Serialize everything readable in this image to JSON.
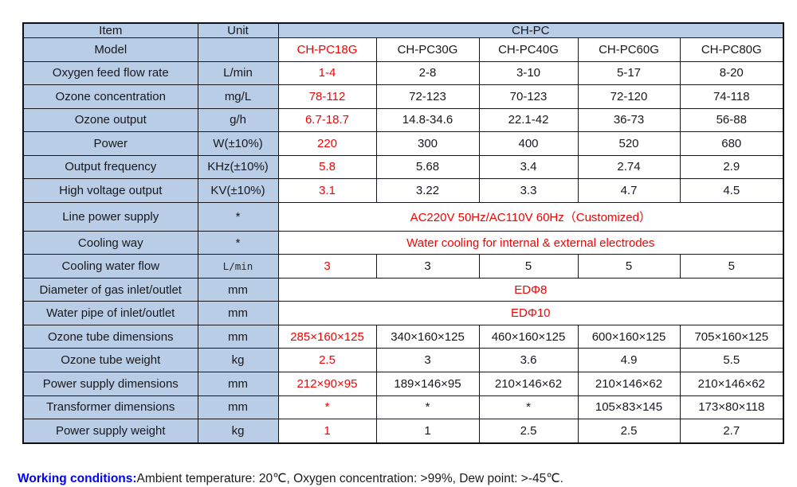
{
  "colors": {
    "header_cell_bg": "#B9CDE7",
    "highlight_red": "#F10404",
    "note_label_blue": "#0000FE",
    "border_black": "#14141A",
    "value_text": "#17181D"
  },
  "table": {
    "header": {
      "item": "Item",
      "unit": "Unit",
      "group": "CH-PC"
    },
    "rows": [
      {
        "item": "Model",
        "unit": "",
        "cells": [
          {
            "t": "CH-PC18G",
            "red": true
          },
          {
            "t": "CH-PC30G"
          },
          {
            "t": "CH-PC40G"
          },
          {
            "t": "CH-PC60G"
          },
          {
            "t": "CH-PC80G"
          }
        ]
      },
      {
        "item": "Oxygen feed flow rate",
        "unit": "L/min",
        "cells": [
          {
            "t": "1-4",
            "red": true
          },
          {
            "t": "2-8"
          },
          {
            "t": "3-10"
          },
          {
            "t": "5-17"
          },
          {
            "t": "8-20"
          }
        ]
      },
      {
        "item": "Ozone concentration",
        "unit": "mg/L",
        "cells": [
          {
            "t": "78-112",
            "red": true
          },
          {
            "t": "72-123"
          },
          {
            "t": "70-123"
          },
          {
            "t": "72-120"
          },
          {
            "t": "74-118"
          }
        ]
      },
      {
        "item": "Ozone output",
        "unit": "g/h",
        "cells": [
          {
            "t": "6.7-18.7",
            "red": true
          },
          {
            "t": "14.8-34.6"
          },
          {
            "t": "22.1-42"
          },
          {
            "t": "36-73"
          },
          {
            "t": "56-88"
          }
        ]
      },
      {
        "item": "Power",
        "unit": "W(±10%)",
        "cells": [
          {
            "t": "220",
            "red": true
          },
          {
            "t": "300"
          },
          {
            "t": "400"
          },
          {
            "t": "520"
          },
          {
            "t": "680"
          }
        ]
      },
      {
        "item": "Output frequency",
        "unit": "KHz(±10%)",
        "cells": [
          {
            "t": "5.8",
            "red": true
          },
          {
            "t": "5.68"
          },
          {
            "t": "3.4"
          },
          {
            "t": "2.74"
          },
          {
            "t": "2.9"
          }
        ]
      },
      {
        "item": "High voltage output",
        "unit": "KV(±10%)",
        "cells": [
          {
            "t": "3.1",
            "red": true
          },
          {
            "t": "3.22"
          },
          {
            "t": "3.3"
          },
          {
            "t": "4.7"
          },
          {
            "t": "4.5"
          }
        ]
      },
      {
        "item": "Line power supply",
        "unit": "*",
        "span": "AC220V 50Hz/AC110V 60Hz（Customized）",
        "span_red": true
      },
      {
        "item": "Cooling way",
        "unit": "*",
        "span": "Water cooling for internal & external electrodes",
        "span_red": true
      },
      {
        "item": "Cooling water flow",
        "unit": "L/min",
        "unit_mono": true,
        "cells": [
          {
            "t": "3",
            "red": true
          },
          {
            "t": "3"
          },
          {
            "t": "5"
          },
          {
            "t": "5"
          },
          {
            "t": "5"
          }
        ]
      },
      {
        "item": "Diameter of gas inlet/outlet",
        "unit": "mm",
        "span": "EDΦ8",
        "span_red": true
      },
      {
        "item": "Water pipe of inlet/outlet",
        "unit": "mm",
        "span": "EDΦ10",
        "span_red": true
      },
      {
        "item": "Ozone tube dimensions",
        "unit": "mm",
        "cells": [
          {
            "t": "285×160×125",
            "red": true
          },
          {
            "t": "340×160×125"
          },
          {
            "t": "460×160×125"
          },
          {
            "t": "600×160×125"
          },
          {
            "t": "705×160×125"
          }
        ]
      },
      {
        "item": "Ozone tube weight",
        "unit": "kg",
        "cells": [
          {
            "t": "2.5",
            "red": true
          },
          {
            "t": "3"
          },
          {
            "t": "3.6"
          },
          {
            "t": "4.9"
          },
          {
            "t": "5.5"
          }
        ]
      },
      {
        "item": "Power supply dimensions",
        "unit": "mm",
        "cells": [
          {
            "t": "212×90×95",
            "red": true
          },
          {
            "t": "189×146×95"
          },
          {
            "t": "210×146×62"
          },
          {
            "t": "210×146×62"
          },
          {
            "t": "210×146×62"
          }
        ]
      },
      {
        "item": "Transformer dimensions",
        "unit": "mm",
        "cells": [
          {
            "t": "*",
            "red": true
          },
          {
            "t": "*"
          },
          {
            "t": "*"
          },
          {
            "t": "105×83×145"
          },
          {
            "t": "173×80×118"
          }
        ]
      },
      {
        "item": "Power supply weight",
        "unit": "kg",
        "cells": [
          {
            "t": "1",
            "red": true
          },
          {
            "t": "1"
          },
          {
            "t": "2.5"
          },
          {
            "t": "2.5"
          },
          {
            "t": "2.7"
          }
        ]
      }
    ]
  },
  "footer": {
    "label": "Working conditions:",
    "text": "Ambient temperature: 20℃, Oxygen concentration: >99%, Dew point: >-45℃."
  }
}
